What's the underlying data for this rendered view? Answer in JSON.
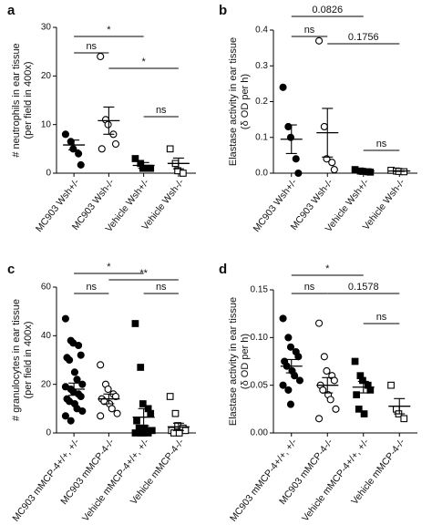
{
  "chart_data": [
    {
      "type": "strip",
      "panel_label": "a",
      "ylabel": [
        "# neutrophils in ear tissue",
        "(per field in 400x)"
      ],
      "categories": [
        "MC903 Wsh+/-",
        "MC903 Wsh-/-",
        "Vehicle Wsh+/-",
        "Vehicle Wsh-/-"
      ],
      "markers": [
        "circle",
        "circle",
        "square",
        "square"
      ],
      "filled": [
        true,
        false,
        true,
        false
      ],
      "color": "#000000",
      "points": [
        [
          8,
          6.5,
          5,
          4,
          1.7
        ],
        [
          24,
          11,
          10,
          8,
          6,
          5
        ],
        [
          3,
          2,
          1,
          1,
          1
        ],
        [
          5,
          2,
          0.5,
          0
        ]
      ],
      "means": [
        5.8,
        10.8,
        1.6,
        2
      ],
      "sems": [
        1,
        2.8,
        0.6,
        1.1
      ],
      "ylim": [
        0,
        30
      ],
      "yticks": [
        0,
        10,
        20,
        30
      ],
      "brackets": [
        {
          "from": 0,
          "to": 2,
          "label": "*"
        },
        {
          "from": 0,
          "to": 1,
          "label": "ns"
        },
        {
          "from": 1,
          "to": 3,
          "label": "*"
        },
        {
          "from": 2,
          "to": 3,
          "label": "ns"
        }
      ]
    },
    {
      "type": "strip",
      "panel_label": "b",
      "ylabel": [
        "Elastase activity in ear tissue",
        "(δ OD per h)"
      ],
      "categories": [
        "MC903 Wsh+/-",
        "MC903 Wsh-/-",
        "Vehicle Wsh+/-",
        "Vehicle Wsh-/-"
      ],
      "markers": [
        "circle",
        "circle",
        "square",
        "square"
      ],
      "filled": [
        true,
        false,
        true,
        false
      ],
      "color": "#000000",
      "points": [
        [
          0.24,
          0.13,
          0.1,
          0.04,
          0.0
        ],
        [
          0.37,
          0.13,
          0.04,
          0.03,
          0.01
        ],
        [
          0.01,
          0.006,
          0.005,
          0.004,
          0.003
        ],
        [
          0.008,
          0.006,
          0.005,
          0.004
        ]
      ],
      "means": [
        0.095,
        0.113,
        0.006,
        0.006
      ],
      "sems": [
        0.04,
        0.068,
        0.002,
        0.001
      ],
      "ylim": [
        0,
        0.4
      ],
      "yticks": [
        {
          "value": 0,
          "label": "0.0"
        },
        0.1,
        0.2,
        0.3,
        0.4
      ],
      "brackets": [
        {
          "from": 0,
          "to": 2,
          "label": "0.0826"
        },
        {
          "from": 0,
          "to": 1,
          "label": "ns"
        },
        {
          "from": 1,
          "to": 3,
          "label": "0.1756"
        },
        {
          "from": 2,
          "to": 3,
          "label": "ns"
        }
      ]
    },
    {
      "type": "strip",
      "panel_label": "c",
      "ylabel": [
        "# granulocytes in ear tissue",
        "(per field in 400x)"
      ],
      "categories": [
        "MC903 mMCP-4+/+, +/-",
        "MC903 mMCP-4-/-",
        "Vehicle mMCP-4+/+, +/-",
        "Vehicle mMCP-4-/-"
      ],
      "markers": [
        "circle",
        "circle",
        "square",
        "square"
      ],
      "filled": [
        true,
        false,
        true,
        false
      ],
      "color": "#000000",
      "points": [
        [
          47,
          38,
          37,
          36,
          32,
          31,
          30,
          25,
          22,
          20,
          19,
          18,
          17,
          16,
          15,
          14,
          13,
          12,
          10,
          9,
          7,
          5
        ],
        [
          28,
          20,
          18,
          16,
          15,
          14,
          13,
          12,
          10,
          8,
          7
        ],
        [
          45,
          27,
          12,
          10,
          8,
          5,
          2,
          2,
          1,
          1,
          0,
          0,
          0,
          0
        ],
        [
          15,
          8,
          3,
          2,
          1,
          1,
          0,
          0
        ]
      ],
      "means": [
        18,
        14,
        6.5,
        2.5
      ],
      "sems": [
        2.5,
        2,
        3.5,
        1.5
      ],
      "ylim": [
        0,
        60
      ],
      "yticks": [
        0,
        20,
        40,
        60
      ],
      "brackets": [
        {
          "from": 0,
          "to": 2,
          "label": "*"
        },
        {
          "from": 0,
          "to": 1,
          "label": "ns"
        },
        {
          "from": 1,
          "to": 3,
          "label": "**"
        },
        {
          "from": 2,
          "to": 3,
          "label": "ns"
        }
      ]
    },
    {
      "type": "strip",
      "panel_label": "d",
      "ylabel": [
        "Elastase activity in ear tissue",
        "(δ OD per h)"
      ],
      "categories": [
        "MC903 mMCP-4+/+, +/-",
        "MC903 mMCP-4-/-",
        "Vehicle mMCP-4+/+, +/-",
        "Vehicle mMCP-4-/-"
      ],
      "markers": [
        "circle",
        "circle",
        "square",
        "square"
      ],
      "filled": [
        true,
        false,
        true,
        false
      ],
      "color": "#000000",
      "points": [
        [
          0.12,
          0.1,
          0.09,
          0.085,
          0.08,
          0.075,
          0.07,
          0.065,
          0.06,
          0.055,
          0.05,
          0.045,
          0.03
        ],
        [
          0.115,
          0.08,
          0.065,
          0.06,
          0.055,
          0.05,
          0.045,
          0.04,
          0.035,
          0.025,
          0.015
        ],
        [
          0.075,
          0.06,
          0.055,
          0.05,
          0.045,
          0.04,
          0.025,
          0.02
        ],
        [
          0.05,
          0.025,
          0.02,
          0.015
        ]
      ],
      "means": [
        0.07,
        0.05,
        0.048,
        0.028
      ],
      "sems": [
        0.007,
        0.008,
        0.006,
        0.008
      ],
      "ylim": [
        0,
        0.15
      ],
      "yticks": [
        {
          "value": 0,
          "label": "0.00"
        },
        {
          "value": 0.05,
          "label": "0.05"
        },
        {
          "value": 0.1,
          "label": "0.10"
        },
        {
          "value": 0.15,
          "label": "0.15"
        }
      ],
      "brackets": [
        {
          "from": 0,
          "to": 2,
          "label": "*"
        },
        {
          "from": 0,
          "to": 1,
          "label": "ns"
        },
        {
          "from": 1,
          "to": 3,
          "label": "0.1578"
        },
        {
          "from": 2,
          "to": 3,
          "label": "ns"
        }
      ]
    }
  ]
}
